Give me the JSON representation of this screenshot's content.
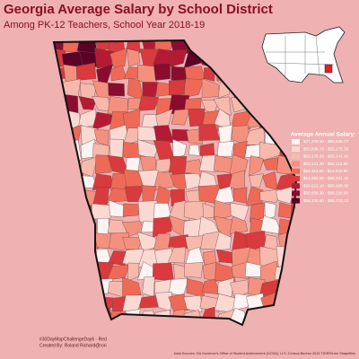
{
  "header": {
    "title": "Georgia Average Salary by School District",
    "subtitle": "Among PK-12 Teachers, School Year 2018-19"
  },
  "legend": {
    "title": "Average Annual Salary:",
    "items": [
      {
        "label": "$47,278.00 - $50,836.73",
        "color": "#fdf3f3"
      },
      {
        "label": "$50,836.73 - $52,175.33",
        "color": "#fbd9d3"
      },
      {
        "label": "$52,175.33 - $53,141.40",
        "color": "#f8b9ad"
      },
      {
        "label": "$53,141.40 - $54,112.60",
        "color": "#f4917e"
      },
      {
        "label": "$54,112.60 - $54,962.80",
        "color": "#ee6a57"
      },
      {
        "label": "$54,962.80 - $56,021.10",
        "color": "#d83a3d"
      },
      {
        "label": "$56,021.10 - $56,958.30",
        "color": "#b51a35"
      },
      {
        "label": "$56,958.30 - $58,226.60",
        "color": "#8a0c2f"
      },
      {
        "label": "$58,226.60 - $65,733.13",
        "color": "#5c0227"
      }
    ]
  },
  "footer": {
    "hashtag": "#30DayMapChallengeDay6 · Red",
    "credit": "Created By: Roland Richard@rori",
    "sources": "Data Sources: GA Governor's Office of Student Achievement (GOSA), U.S. Census Bureau 2019 TIGER/Line Shapefiles"
  }
}
